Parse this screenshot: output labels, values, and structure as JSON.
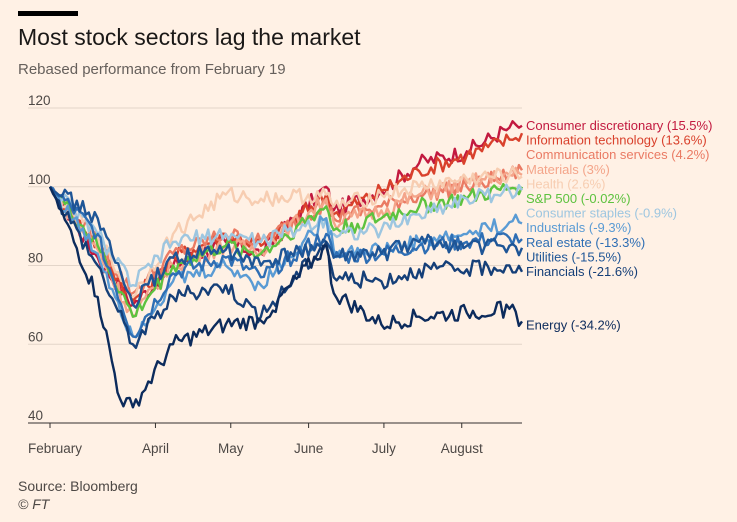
{
  "header": {
    "title": "Most stock sectors lag the market",
    "subtitle": "Rebased performance from February 19"
  },
  "footer": {
    "source": "Source: Bloomberg",
    "credit": "© FT"
  },
  "colors": {
    "background": "#fff1e5",
    "grid": "#e3d5c9",
    "axis": "#33302e"
  },
  "chart_data": {
    "type": "line",
    "title": "Most stock sectors lag the market",
    "subtitle": "Rebased performance from February 19",
    "xlabel": "",
    "ylabel": "",
    "ylim": [
      40,
      120
    ],
    "yticks": [
      40,
      60,
      80,
      100,
      120
    ],
    "grid": "horizontal",
    "legend": "direct labels at right",
    "x_ticks": [
      {
        "label": "February",
        "date": "2020-02-19"
      },
      {
        "label": "April",
        "date": "2020-04-01"
      },
      {
        "label": "May",
        "date": "2020-05-01"
      },
      {
        "label": "June",
        "date": "2020-06-01"
      },
      {
        "label": "July",
        "date": "2020-07-01"
      },
      {
        "label": "August",
        "date": "2020-08-01"
      }
    ],
    "x_range": [
      "2020-02-19",
      "2020-08-25"
    ],
    "series": [
      {
        "name": "Consumer discretionary (15.5%)",
        "color": "#c2193f",
        "points": [
          [
            "2020-02-19",
            100
          ],
          [
            "2020-03-09",
            82
          ],
          [
            "2020-03-23",
            70
          ],
          [
            "2020-04-08",
            80
          ],
          [
            "2020-04-29",
            86
          ],
          [
            "2020-05-13",
            83
          ],
          [
            "2020-06-08",
            100
          ],
          [
            "2020-06-11",
            94
          ],
          [
            "2020-06-30",
            99
          ],
          [
            "2020-07-15",
            106
          ],
          [
            "2020-08-03",
            109
          ],
          [
            "2020-08-20",
            115
          ],
          [
            "2020-08-25",
            115.5
          ]
        ]
      },
      {
        "name": "Information technology (13.6%)",
        "color": "#d9412c",
        "points": [
          [
            "2020-02-19",
            100
          ],
          [
            "2020-03-09",
            85
          ],
          [
            "2020-03-23",
            71
          ],
          [
            "2020-04-08",
            82
          ],
          [
            "2020-04-29",
            88
          ],
          [
            "2020-05-13",
            85
          ],
          [
            "2020-06-08",
            98
          ],
          [
            "2020-06-11",
            93
          ],
          [
            "2020-06-30",
            99
          ],
          [
            "2020-07-15",
            104
          ],
          [
            "2020-08-03",
            108
          ],
          [
            "2020-08-20",
            112
          ],
          [
            "2020-08-25",
            113.6
          ]
        ]
      },
      {
        "name": "Communication services (4.2%)",
        "color": "#ea7a63",
        "points": [
          [
            "2020-02-19",
            100
          ],
          [
            "2020-03-09",
            86
          ],
          [
            "2020-03-23",
            73
          ],
          [
            "2020-04-08",
            83
          ],
          [
            "2020-04-29",
            88
          ],
          [
            "2020-05-13",
            86
          ],
          [
            "2020-06-08",
            96
          ],
          [
            "2020-06-11",
            92
          ],
          [
            "2020-06-30",
            95
          ],
          [
            "2020-07-15",
            98
          ],
          [
            "2020-08-03",
            100
          ],
          [
            "2020-08-20",
            103
          ],
          [
            "2020-08-25",
            104.2
          ]
        ]
      },
      {
        "name": "Materials (3%)",
        "color": "#f4a58a",
        "points": [
          [
            "2020-02-19",
            100
          ],
          [
            "2020-03-09",
            84
          ],
          [
            "2020-03-23",
            67
          ],
          [
            "2020-04-08",
            80
          ],
          [
            "2020-04-29",
            85
          ],
          [
            "2020-05-13",
            84
          ],
          [
            "2020-06-08",
            97
          ],
          [
            "2020-06-11",
            91
          ],
          [
            "2020-06-30",
            94
          ],
          [
            "2020-07-15",
            98
          ],
          [
            "2020-08-03",
            101
          ],
          [
            "2020-08-20",
            103
          ],
          [
            "2020-08-25",
            103
          ]
        ]
      },
      {
        "name": "Health (2.6%)",
        "color": "#f7cdb1",
        "points": [
          [
            "2020-02-19",
            100
          ],
          [
            "2020-03-09",
            87
          ],
          [
            "2020-03-23",
            72
          ],
          [
            "2020-04-08",
            88
          ],
          [
            "2020-04-29",
            98
          ],
          [
            "2020-05-13",
            97
          ],
          [
            "2020-06-08",
            98
          ],
          [
            "2020-06-11",
            95
          ],
          [
            "2020-06-30",
            98
          ],
          [
            "2020-07-15",
            100
          ],
          [
            "2020-08-03",
            102
          ],
          [
            "2020-08-20",
            103
          ],
          [
            "2020-08-25",
            102.6
          ]
        ]
      },
      {
        "name": "S&P 500 (-0.02%)",
        "color": "#5dc23f",
        "points": [
          [
            "2020-02-19",
            100
          ],
          [
            "2020-03-09",
            85
          ],
          [
            "2020-03-23",
            67
          ],
          [
            "2020-04-08",
            80
          ],
          [
            "2020-04-29",
            85
          ],
          [
            "2020-05-13",
            83
          ],
          [
            "2020-06-08",
            95
          ],
          [
            "2020-06-11",
            89
          ],
          [
            "2020-06-30",
            92
          ],
          [
            "2020-07-15",
            95
          ],
          [
            "2020-08-03",
            97
          ],
          [
            "2020-08-20",
            99.5
          ],
          [
            "2020-08-25",
            100
          ]
        ]
      },
      {
        "name": "Consumer staples (-0.9%)",
        "color": "#9dc6e0",
        "points": [
          [
            "2020-02-19",
            100
          ],
          [
            "2020-03-09",
            88
          ],
          [
            "2020-03-23",
            75
          ],
          [
            "2020-04-08",
            86
          ],
          [
            "2020-04-29",
            88
          ],
          [
            "2020-05-13",
            86
          ],
          [
            "2020-06-08",
            92
          ],
          [
            "2020-06-11",
            88
          ],
          [
            "2020-06-30",
            89
          ],
          [
            "2020-07-15",
            93
          ],
          [
            "2020-08-03",
            97
          ],
          [
            "2020-08-20",
            99
          ],
          [
            "2020-08-25",
            99.1
          ]
        ]
      },
      {
        "name": "Industrials (-9.3%)",
        "color": "#5a9bd4",
        "points": [
          [
            "2020-02-19",
            100
          ],
          [
            "2020-03-09",
            83
          ],
          [
            "2020-03-23",
            62
          ],
          [
            "2020-04-08",
            76
          ],
          [
            "2020-04-29",
            80
          ],
          [
            "2020-05-13",
            75
          ],
          [
            "2020-06-08",
            92
          ],
          [
            "2020-06-11",
            84
          ],
          [
            "2020-06-30",
            84
          ],
          [
            "2020-07-15",
            86
          ],
          [
            "2020-08-03",
            88
          ],
          [
            "2020-08-20",
            91
          ],
          [
            "2020-08-25",
            90.7
          ]
        ]
      },
      {
        "name": "Real estate (-13.3%)",
        "color": "#2e6eb4",
        "points": [
          [
            "2020-02-19",
            100
          ],
          [
            "2020-03-09",
            88
          ],
          [
            "2020-03-23",
            62
          ],
          [
            "2020-04-08",
            78
          ],
          [
            "2020-04-29",
            82
          ],
          [
            "2020-05-13",
            77
          ],
          [
            "2020-06-08",
            88
          ],
          [
            "2020-06-11",
            82
          ],
          [
            "2020-06-30",
            83
          ],
          [
            "2020-07-15",
            85
          ],
          [
            "2020-08-03",
            86
          ],
          [
            "2020-08-20",
            87
          ],
          [
            "2020-08-25",
            86.7
          ]
        ]
      },
      {
        "name": "Utilities (-15.5%)",
        "color": "#1e5596",
        "points": [
          [
            "2020-02-19",
            100
          ],
          [
            "2020-03-09",
            92
          ],
          [
            "2020-03-23",
            70
          ],
          [
            "2020-04-08",
            82
          ],
          [
            "2020-04-29",
            84
          ],
          [
            "2020-05-13",
            80
          ],
          [
            "2020-06-08",
            86
          ],
          [
            "2020-06-11",
            82
          ],
          [
            "2020-06-30",
            83
          ],
          [
            "2020-07-15",
            86
          ],
          [
            "2020-08-03",
            85
          ],
          [
            "2020-08-20",
            85
          ],
          [
            "2020-08-25",
            84.5
          ]
        ]
      },
      {
        "name": "Financials (-21.6%)",
        "color": "#153f78",
        "points": [
          [
            "2020-02-19",
            100
          ],
          [
            "2020-03-09",
            80
          ],
          [
            "2020-03-23",
            60
          ],
          [
            "2020-04-08",
            72
          ],
          [
            "2020-04-29",
            75
          ],
          [
            "2020-05-13",
            67
          ],
          [
            "2020-06-08",
            86
          ],
          [
            "2020-06-11",
            77
          ],
          [
            "2020-06-30",
            76
          ],
          [
            "2020-07-15",
            79
          ],
          [
            "2020-08-03",
            79
          ],
          [
            "2020-08-20",
            80
          ],
          [
            "2020-08-25",
            78.4
          ]
        ]
      },
      {
        "name": "Energy (-34.2%)",
        "color": "#0c2b5c",
        "points": [
          [
            "2020-02-19",
            100
          ],
          [
            "2020-03-09",
            72
          ],
          [
            "2020-03-18",
            46
          ],
          [
            "2020-03-23",
            44
          ],
          [
            "2020-04-08",
            60
          ],
          [
            "2020-04-29",
            65
          ],
          [
            "2020-05-13",
            66
          ],
          [
            "2020-06-08",
            85
          ],
          [
            "2020-06-11",
            73
          ],
          [
            "2020-06-30",
            65
          ],
          [
            "2020-07-15",
            67
          ],
          [
            "2020-08-03",
            68
          ],
          [
            "2020-08-20",
            69
          ],
          [
            "2020-08-25",
            65.8
          ]
        ]
      }
    ]
  }
}
